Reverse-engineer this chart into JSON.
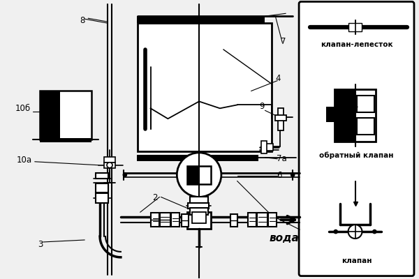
{
  "background_color": "#f5f5f5",
  "legend_box": {
    "label1": "клапан-лепесток",
    "label2": "обратный клапан",
    "label3": "клапан"
  }
}
